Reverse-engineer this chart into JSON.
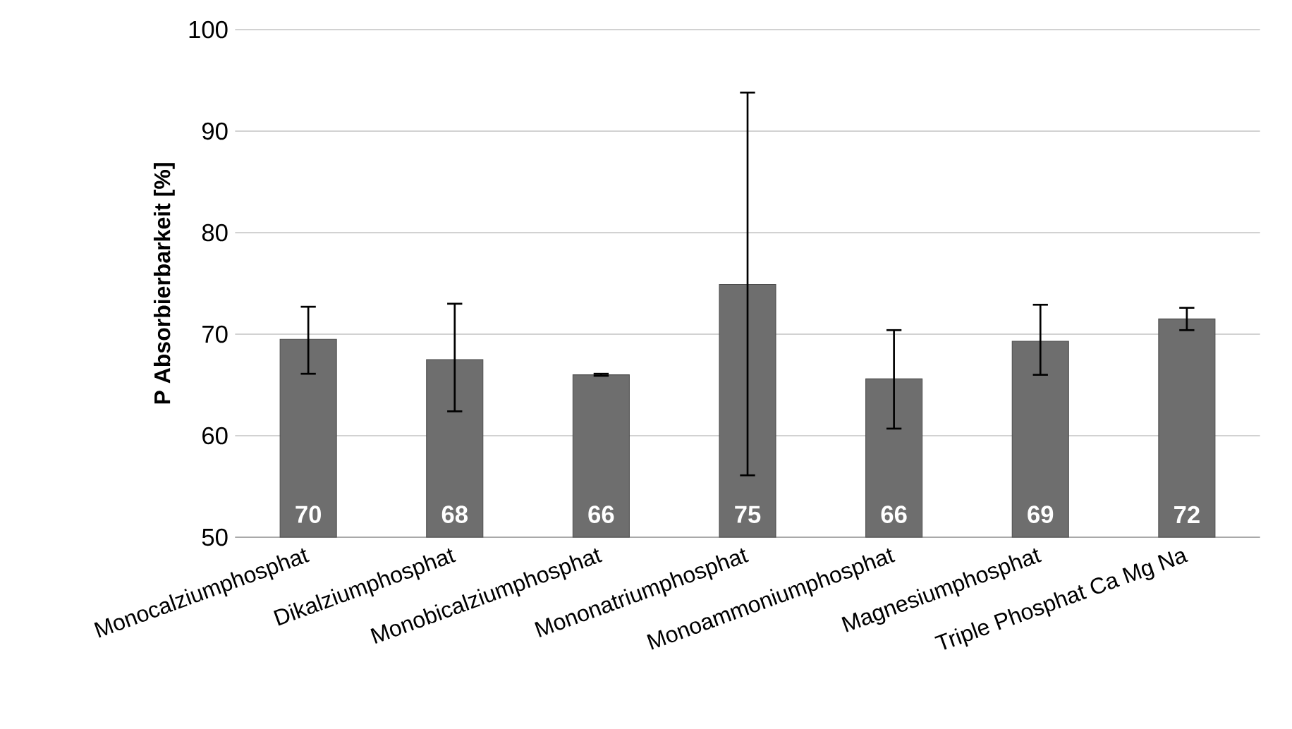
{
  "chart_data": {
    "type": "bar",
    "ylabel": "P Absorbierbarkeit [%]",
    "categories": [
      "Monocalziumphosphat",
      "Dikalziumphosphat",
      "Monobicalziumphosphat",
      "Mononatriumphosphat",
      "Monoammoniumphosphat",
      "Magnesiumphosphat",
      "Triple Phosphat Ca Mg Na"
    ],
    "values": [
      69.5,
      67.5,
      66.0,
      74.9,
      65.6,
      69.3,
      71.5
    ],
    "value_labels": [
      "70",
      "68",
      "66",
      "75",
      "66",
      "69",
      "72"
    ],
    "errors": [
      [
        66.1,
        72.7
      ],
      [
        62.4,
        73.0
      ],
      [
        65.9,
        66.1
      ],
      [
        56.1,
        93.8
      ],
      [
        60.7,
        70.4
      ],
      [
        66.0,
        72.9
      ],
      [
        70.4,
        72.6
      ]
    ],
    "color": "#6e6e6e",
    "ylim": [
      50,
      100
    ],
    "yticks": [
      50,
      60,
      70,
      80,
      90,
      100
    ],
    "grid": "y"
  }
}
